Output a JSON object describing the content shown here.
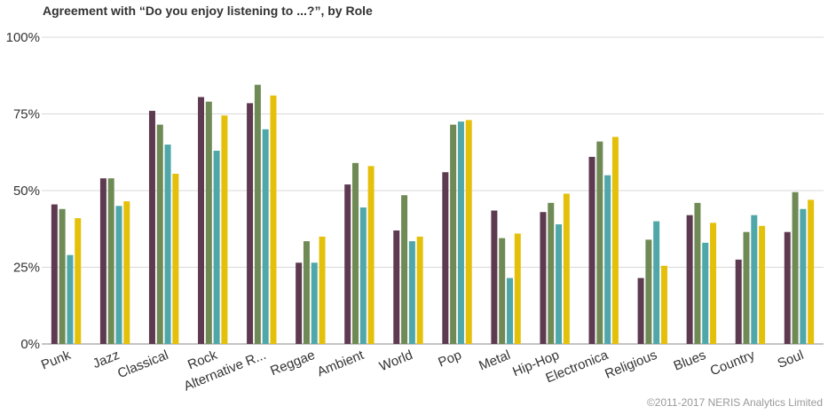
{
  "title": "Agreement with “Do you enjoy listening to ...?”, by Role",
  "copyright": "©2011-2017 NERIS Analytics Limited",
  "chart_data": {
    "type": "bar",
    "title": "Agreement with “Do you enjoy listening to ...?”, by Role",
    "ylim": [
      0,
      100
    ],
    "yticks": [
      0,
      25,
      50,
      75,
      100
    ],
    "ytick_labels": [
      "0%",
      "25%",
      "50%",
      "75%",
      "100%"
    ],
    "grid": true,
    "categories": [
      "Punk",
      "Jazz",
      "Classical",
      "Rock",
      "Alternative R...",
      "Reggae",
      "Ambient",
      "World",
      "Pop",
      "Metal",
      "Hip-Hop",
      "Electronica",
      "Religious",
      "Blues",
      "Country",
      "Soul"
    ],
    "series": [
      {
        "color": "#5e3a50",
        "values": [
          45.5,
          54,
          76,
          80.5,
          78.5,
          26.5,
          52,
          37,
          56,
          43.5,
          43,
          61,
          21.5,
          42,
          27.5,
          36.5
        ]
      },
      {
        "color": "#6f8a55",
        "values": [
          44,
          54,
          71.5,
          79,
          84.5,
          33.5,
          59,
          48.5,
          71.5,
          34.5,
          46,
          66,
          34,
          46,
          36.5,
          49.5
        ]
      },
      {
        "color": "#4fa7a9",
        "values": [
          29,
          45,
          65,
          63,
          70,
          26.5,
          44.5,
          33.5,
          72.5,
          21.5,
          39,
          55,
          40,
          33,
          42,
          44
        ]
      },
      {
        "color": "#e5c00a",
        "values": [
          41,
          46.5,
          55.5,
          74.5,
          81,
          35,
          58,
          35,
          73,
          36,
          49,
          67.5,
          25.5,
          39.5,
          38.5,
          47
        ]
      }
    ]
  }
}
